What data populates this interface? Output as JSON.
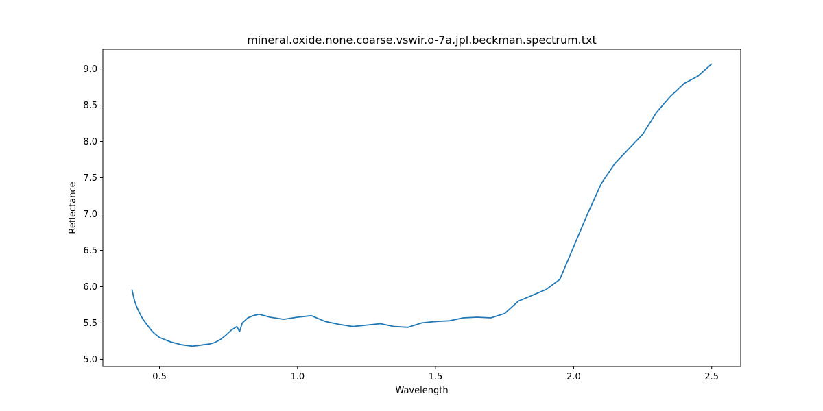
{
  "chart_data": {
    "type": "line",
    "title": "mineral.oxide.none.coarse.vswir.o-7a.jpl.beckman.spectrum.txt",
    "xlabel": "Wavelength",
    "ylabel": "Reflectance",
    "xlim": [
      0.295,
      2.605
    ],
    "ylim": [
      4.9,
      9.27
    ],
    "x_ticks": [
      0.5,
      1.0,
      1.5,
      2.0,
      2.5
    ],
    "x_tick_labels": [
      "0.5",
      "1.0",
      "1.5",
      "2.0",
      "2.5"
    ],
    "y_ticks": [
      5.0,
      5.5,
      6.0,
      6.5,
      7.0,
      7.5,
      8.0,
      8.5,
      9.0
    ],
    "y_tick_labels": [
      "5.0",
      "5.5",
      "6.0",
      "6.5",
      "7.0",
      "7.5",
      "8.0",
      "8.5",
      "9.0"
    ],
    "grid": false,
    "series": [
      {
        "color": "#1f77b4",
        "x": [
          0.4,
          0.41,
          0.42,
          0.43,
          0.44,
          0.45,
          0.46,
          0.47,
          0.48,
          0.49,
          0.5,
          0.52,
          0.54,
          0.56,
          0.58,
          0.6,
          0.62,
          0.64,
          0.66,
          0.68,
          0.7,
          0.72,
          0.74,
          0.76,
          0.78,
          0.79,
          0.8,
          0.82,
          0.84,
          0.86,
          0.88,
          0.9,
          0.95,
          1.0,
          1.05,
          1.1,
          1.15,
          1.2,
          1.25,
          1.3,
          1.35,
          1.4,
          1.45,
          1.5,
          1.55,
          1.6,
          1.65,
          1.7,
          1.75,
          1.8,
          1.85,
          1.9,
          1.95,
          2.0,
          2.05,
          2.1,
          2.15,
          2.2,
          2.25,
          2.3,
          2.35,
          2.4,
          2.45,
          2.5
        ],
        "y": [
          5.96,
          5.8,
          5.7,
          5.62,
          5.55,
          5.5,
          5.45,
          5.4,
          5.36,
          5.33,
          5.3,
          5.27,
          5.24,
          5.22,
          5.2,
          5.19,
          5.18,
          5.19,
          5.2,
          5.21,
          5.23,
          5.27,
          5.33,
          5.4,
          5.45,
          5.38,
          5.5,
          5.57,
          5.6,
          5.62,
          5.6,
          5.58,
          5.55,
          5.58,
          5.6,
          5.52,
          5.48,
          5.45,
          5.47,
          5.49,
          5.45,
          5.44,
          5.5,
          5.52,
          5.53,
          5.57,
          5.58,
          5.57,
          5.63,
          5.8,
          5.88,
          5.96,
          6.1,
          6.55,
          7.0,
          7.42,
          7.7,
          7.9,
          8.1,
          8.4,
          8.62,
          8.8,
          8.9,
          9.07
        ]
      }
    ]
  }
}
